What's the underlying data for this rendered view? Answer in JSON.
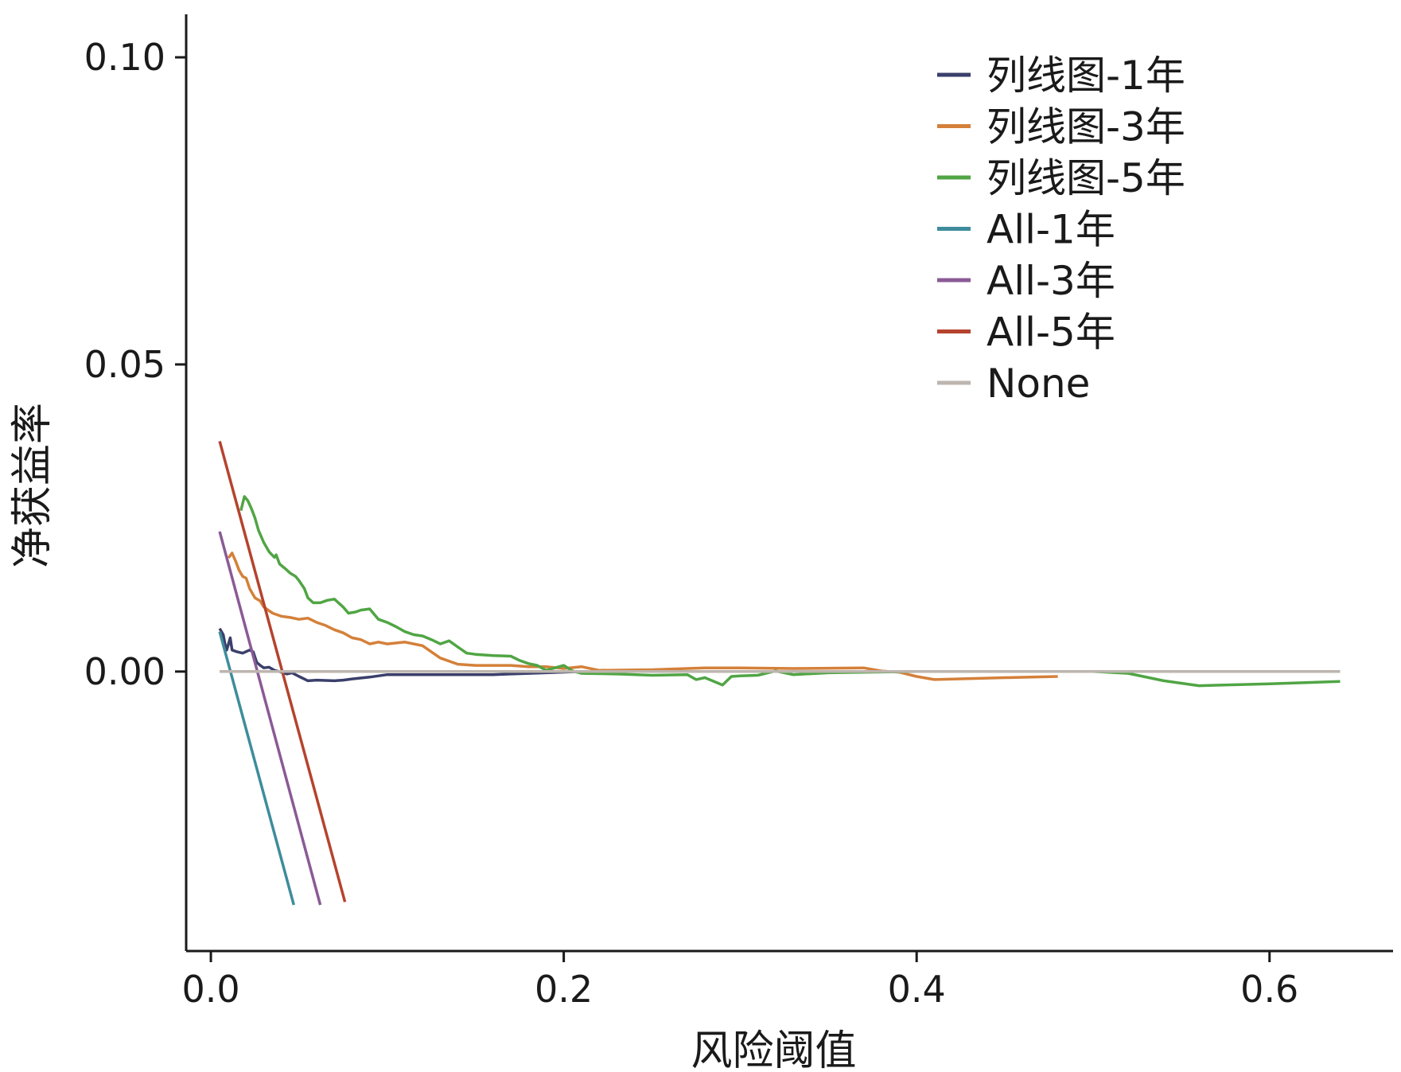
{
  "chart_data": {
    "type": "line",
    "title": "",
    "xlabel": "风险阈值",
    "ylabel": "净获益率",
    "xlim": [
      -0.014,
      0.67
    ],
    "ylim": [
      -0.0455,
      0.107
    ],
    "x_ticks": [
      "0.0",
      "0.2",
      "0.4",
      "0.6"
    ],
    "y_ticks": [
      "0.00",
      "0.05",
      "0.10"
    ],
    "grid": false,
    "legend_position": "top-right",
    "series": [
      {
        "name": "列线图-1年",
        "color": "#3a3f6b",
        "points": [
          [
            0.005,
            0.007
          ],
          [
            0.007,
            0.006
          ],
          [
            0.008,
            0.0045
          ],
          [
            0.009,
            0.0035
          ],
          [
            0.01,
            0.0045
          ],
          [
            0.011,
            0.0055
          ],
          [
            0.012,
            0.0035
          ],
          [
            0.015,
            0.0032
          ],
          [
            0.018,
            0.003
          ],
          [
            0.022,
            0.0035
          ],
          [
            0.024,
            0.0032
          ],
          [
            0.026,
            0.0015
          ],
          [
            0.028,
            0.001
          ],
          [
            0.03,
            0.0006
          ],
          [
            0.033,
            0.0007
          ],
          [
            0.036,
            0.0002
          ],
          [
            0.04,
            -0.0001
          ],
          [
            0.043,
            -0.0004
          ],
          [
            0.046,
            -0.0002
          ],
          [
            0.05,
            -0.0008
          ],
          [
            0.055,
            -0.0015
          ],
          [
            0.06,
            -0.0014
          ],
          [
            0.07,
            -0.0015
          ],
          [
            0.075,
            -0.0014
          ],
          [
            0.08,
            -0.0012
          ],
          [
            0.09,
            -0.0009
          ],
          [
            0.1,
            -0.0005
          ],
          [
            0.13,
            -0.0005
          ],
          [
            0.16,
            -0.0005
          ],
          [
            0.19,
            -0.0002
          ],
          [
            0.21,
            0
          ]
        ]
      },
      {
        "name": "列线图-3年",
        "color": "#d4803a",
        "points": [
          [
            0.01,
            0.0185
          ],
          [
            0.012,
            0.0193
          ],
          [
            0.014,
            0.018
          ],
          [
            0.016,
            0.0165
          ],
          [
            0.018,
            0.0155
          ],
          [
            0.02,
            0.0152
          ],
          [
            0.022,
            0.0135
          ],
          [
            0.025,
            0.012
          ],
          [
            0.028,
            0.0115
          ],
          [
            0.03,
            0.0105
          ],
          [
            0.035,
            0.0095
          ],
          [
            0.04,
            0.009
          ],
          [
            0.045,
            0.0088
          ],
          [
            0.05,
            0.0085
          ],
          [
            0.055,
            0.0087
          ],
          [
            0.06,
            0.008
          ],
          [
            0.065,
            0.0075
          ],
          [
            0.07,
            0.0068
          ],
          [
            0.075,
            0.0063
          ],
          [
            0.08,
            0.0055
          ],
          [
            0.085,
            0.0052
          ],
          [
            0.09,
            0.0045
          ],
          [
            0.095,
            0.0048
          ],
          [
            0.1,
            0.0045
          ],
          [
            0.11,
            0.0048
          ],
          [
            0.12,
            0.0042
          ],
          [
            0.13,
            0.0022
          ],
          [
            0.14,
            0.0012
          ],
          [
            0.15,
            0.001
          ],
          [
            0.16,
            0.001
          ],
          [
            0.17,
            0.001
          ],
          [
            0.18,
            0.0008
          ],
          [
            0.19,
            0.0008
          ],
          [
            0.2,
            0.0005
          ],
          [
            0.21,
            0.0008
          ],
          [
            0.22,
            0.0002
          ],
          [
            0.25,
            0.0003
          ],
          [
            0.28,
            0.0006
          ],
          [
            0.3,
            0.0006
          ],
          [
            0.33,
            0.0005
          ],
          [
            0.37,
            0.0006
          ],
          [
            0.38,
            0.0001
          ],
          [
            0.39,
            -0.0001
          ],
          [
            0.4,
            -0.0008
          ],
          [
            0.41,
            -0.0013
          ],
          [
            0.45,
            -0.001
          ],
          [
            0.48,
            -0.0008
          ]
        ]
      },
      {
        "name": "列线图-5年",
        "color": "#50a544",
        "points": [
          [
            0.017,
            0.0262
          ],
          [
            0.019,
            0.0285
          ],
          [
            0.021,
            0.0278
          ],
          [
            0.023,
            0.0265
          ],
          [
            0.025,
            0.025
          ],
          [
            0.027,
            0.023
          ],
          [
            0.03,
            0.021
          ],
          [
            0.033,
            0.0195
          ],
          [
            0.036,
            0.0186
          ],
          [
            0.037,
            0.019
          ],
          [
            0.039,
            0.0175
          ],
          [
            0.042,
            0.0168
          ],
          [
            0.045,
            0.016
          ],
          [
            0.048,
            0.0155
          ],
          [
            0.05,
            0.0148
          ],
          [
            0.053,
            0.0135
          ],
          [
            0.055,
            0.012
          ],
          [
            0.058,
            0.0112
          ],
          [
            0.062,
            0.0112
          ],
          [
            0.066,
            0.0116
          ],
          [
            0.07,
            0.0118
          ],
          [
            0.075,
            0.0105
          ],
          [
            0.078,
            0.0095
          ],
          [
            0.082,
            0.0097
          ],
          [
            0.085,
            0.01
          ],
          [
            0.09,
            0.0102
          ],
          [
            0.095,
            0.0085
          ],
          [
            0.1,
            0.008
          ],
          [
            0.105,
            0.0073
          ],
          [
            0.11,
            0.0065
          ],
          [
            0.115,
            0.006
          ],
          [
            0.12,
            0.0058
          ],
          [
            0.125,
            0.0052
          ],
          [
            0.13,
            0.0045
          ],
          [
            0.135,
            0.005
          ],
          [
            0.14,
            0.004
          ],
          [
            0.145,
            0.003
          ],
          [
            0.15,
            0.0028
          ],
          [
            0.16,
            0.0026
          ],
          [
            0.17,
            0.0025
          ],
          [
            0.175,
            0.0018
          ],
          [
            0.18,
            0.0013
          ],
          [
            0.185,
            0.001
          ],
          [
            0.19,
            0.0002
          ],
          [
            0.2,
            0.001
          ],
          [
            0.205,
            0.0001
          ],
          [
            0.21,
            -0.0003
          ],
          [
            0.23,
            -0.0004
          ],
          [
            0.25,
            -0.0006
          ],
          [
            0.27,
            -0.0005
          ],
          [
            0.275,
            -0.0013
          ],
          [
            0.28,
            -0.001
          ],
          [
            0.29,
            -0.0022
          ],
          [
            0.295,
            -0.0008
          ],
          [
            0.3,
            -0.0007
          ],
          [
            0.31,
            -0.0006
          ],
          [
            0.32,
            0.0001
          ],
          [
            0.33,
            -0.0005
          ],
          [
            0.35,
            -0.0002
          ],
          [
            0.4,
            0
          ],
          [
            0.5,
            0
          ],
          [
            0.52,
            -0.0003
          ],
          [
            0.54,
            -0.0015
          ],
          [
            0.56,
            -0.0023
          ],
          [
            0.6,
            -0.002
          ],
          [
            0.64,
            -0.0016
          ]
        ]
      },
      {
        "name": "All-1年",
        "color": "#3e8c9c",
        "points": [
          [
            0.005,
            0.0065
          ],
          [
            0.047,
            -0.038
          ]
        ]
      },
      {
        "name": "All-3年",
        "color": "#8a5a96",
        "points": [
          [
            0.005,
            0.0228
          ],
          [
            0.062,
            -0.038
          ]
        ]
      },
      {
        "name": "All-5年",
        "color": "#b5432e",
        "points": [
          [
            0.005,
            0.0375
          ],
          [
            0.076,
            -0.0375
          ]
        ]
      },
      {
        "name": "None",
        "color": "#bdb5ae",
        "points": [
          [
            0.005,
            0
          ],
          [
            0.64,
            0
          ]
        ]
      }
    ]
  }
}
